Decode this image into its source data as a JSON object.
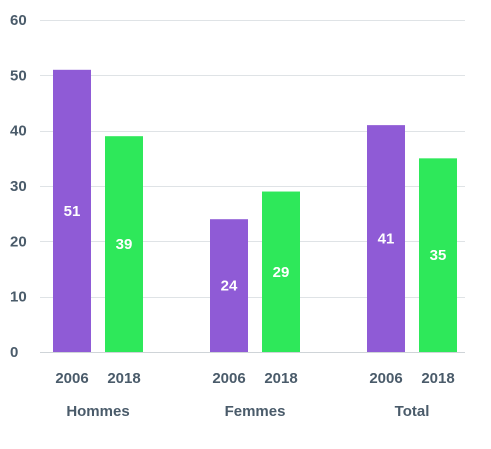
{
  "chart_data": {
    "type": "bar",
    "title": "",
    "xlabel": "",
    "ylabel": "",
    "ylim": [
      0,
      60
    ],
    "yticks": [
      0,
      10,
      20,
      30,
      40,
      50,
      60
    ],
    "grid": true,
    "legend": "none",
    "groups": [
      "Hommes",
      "Femmes",
      "Total"
    ],
    "series": [
      {
        "year": "2006",
        "color": "#8f5bd6",
        "values": [
          51,
          24,
          41
        ]
      },
      {
        "year": "2018",
        "color": "#2ee85a",
        "values": [
          39,
          29,
          35
        ]
      }
    ]
  }
}
